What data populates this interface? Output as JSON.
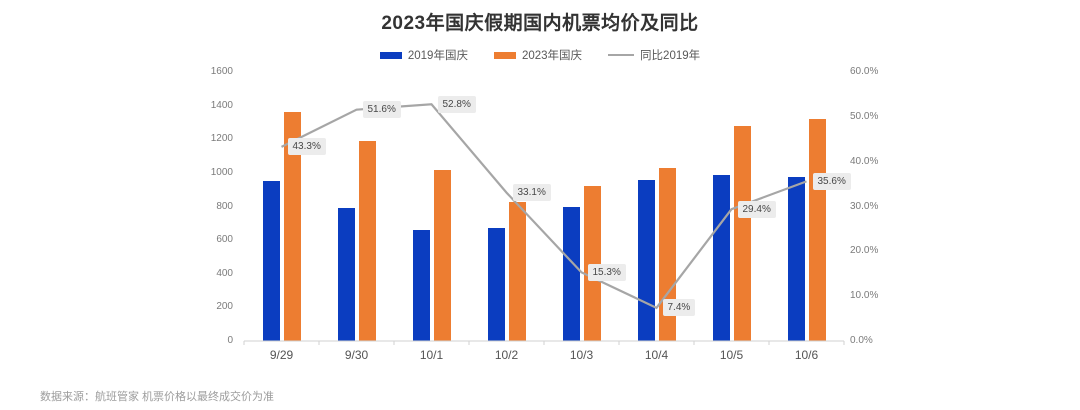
{
  "title": "2023年国庆假期国内机票均价及同比",
  "footer": "数据来源：航班管家 机票价格以最终成交价为准",
  "legend": [
    {
      "label": "2019年国庆",
      "color": "#0b3dc0",
      "type": "bar"
    },
    {
      "label": "2023年国庆",
      "color": "#ed7d31",
      "type": "bar"
    },
    {
      "label": "同比2019年",
      "color": "#a6a6a6",
      "type": "line"
    }
  ],
  "chart_data": {
    "type": "bar",
    "subtype": "grouped bars with overlay line, dual axis",
    "title": "2023年国庆假期国内机票均价及同比",
    "categories": [
      "9/29",
      "9/30",
      "10/1",
      "10/2",
      "10/3",
      "10/4",
      "10/5",
      "10/6"
    ],
    "series": [
      {
        "name": "2019年国庆",
        "type": "bar",
        "axis": "left",
        "color": "#0b3dc0",
        "values": [
          950,
          790,
          660,
          670,
          800,
          960,
          990,
          975
        ]
      },
      {
        "name": "2023年国庆",
        "type": "bar",
        "axis": "left",
        "color": "#ed7d31",
        "values": [
          1360,
          1190,
          1015,
          825,
          920,
          1030,
          1280,
          1320
        ]
      },
      {
        "name": "同比2019年",
        "type": "line",
        "axis": "right",
        "color": "#a6a6a6",
        "values": [
          43.3,
          51.6,
          52.8,
          33.1,
          15.3,
          7.4,
          29.4,
          35.6
        ],
        "labels": [
          "43.3%",
          "51.6%",
          "52.8%",
          "33.1%",
          "15.3%",
          "7.4%",
          "29.4%",
          "35.6%"
        ]
      }
    ],
    "left_axis": {
      "min": 0,
      "max": 1600,
      "step": 200,
      "ticks": [
        "0",
        "200",
        "400",
        "600",
        "800",
        "1000",
        "1200",
        "1400",
        "1600"
      ]
    },
    "right_axis": {
      "min": 0,
      "max": 60,
      "step": 10,
      "ticks": [
        "0.0%",
        "10.0%",
        "20.0%",
        "30.0%",
        "40.0%",
        "50.0%",
        "60.0%"
      ]
    },
    "grid": false,
    "legend_position": "top",
    "colors": {
      "axis_line": "#d2d2d2",
      "badge_bg": "#ececec",
      "badge_text": "#474747"
    }
  }
}
